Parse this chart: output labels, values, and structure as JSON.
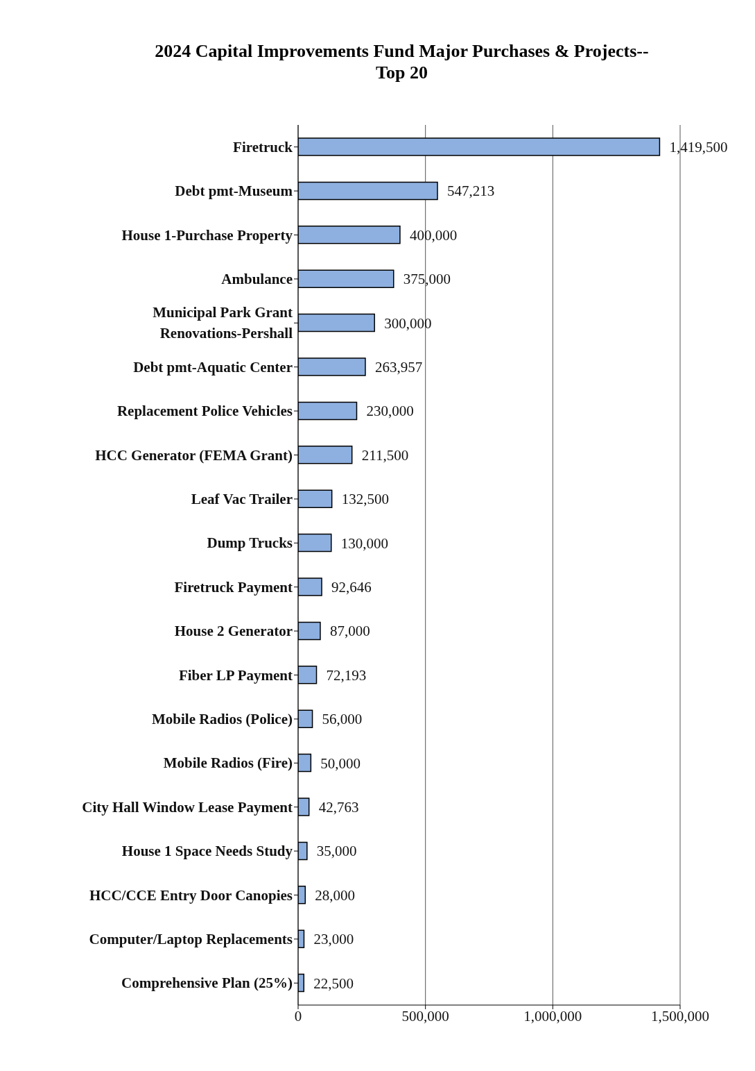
{
  "chart_data": {
    "type": "bar",
    "orientation": "horizontal",
    "title": "2024 Capital Improvements Fund Major Purchases & Projects--\nTop 20",
    "categories": [
      "Firetruck",
      "Debt pmt-Museum",
      "House 1-Purchase Property",
      "Ambulance",
      "Municipal Park Grant\nRenovations-Pershall",
      "Debt pmt-Aquatic Center",
      "Replacement Police Vehicles",
      "HCC Generator (FEMA Grant)",
      "Leaf Vac Trailer",
      "Dump Trucks",
      "Firetruck Payment",
      "House 2 Generator",
      "Fiber LP Payment",
      "Mobile Radios (Police)",
      "Mobile Radios (Fire)",
      "City Hall Window Lease Payment",
      "House 1 Space Needs Study",
      "HCC/CCE Entry Door Canopies",
      "Computer/Laptop Replacements",
      "Comprehensive Plan (25%)"
    ],
    "values": [
      1419500,
      547213,
      400000,
      375000,
      300000,
      263957,
      230000,
      211500,
      132500,
      130000,
      92646,
      87000,
      72193,
      56000,
      50000,
      42763,
      35000,
      28000,
      23000,
      22500
    ],
    "value_labels": [
      "1,419,500",
      "547,213",
      "400,000",
      "375,000",
      "300,000",
      "263,957",
      "230,000",
      "211,500",
      "132,500",
      "130,000",
      "92,646",
      "87,000",
      "72,193",
      "56,000",
      "50,000",
      "42,763",
      "35,000",
      "28,000",
      "23,000",
      "22,500"
    ],
    "color": "#8eb0e0",
    "xlim": [
      0,
      1500000
    ],
    "xticks": [
      {
        "value": 0,
        "label": "0"
      },
      {
        "value": 500000,
        "label": "500,000"
      },
      {
        "value": 1000000,
        "label": "1,000,000"
      },
      {
        "value": 1500000,
        "label": "1,500,000"
      }
    ],
    "grid": "x"
  }
}
